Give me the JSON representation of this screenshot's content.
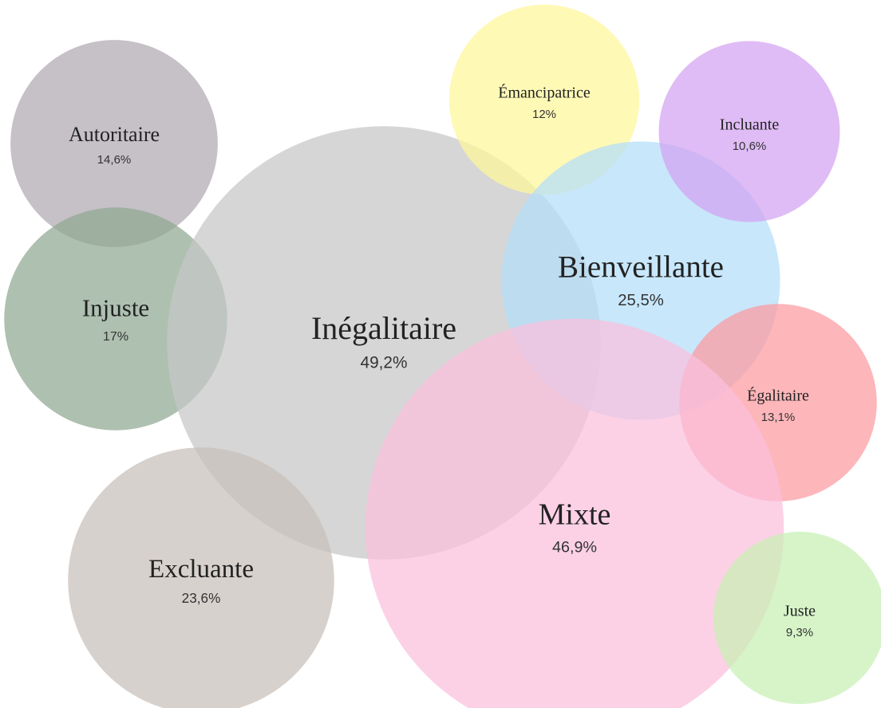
{
  "chart_data": {
    "type": "bubble",
    "categories": [
      "Autoritaire",
      "Injuste",
      "Inégalitaire",
      "Excluante",
      "Émancipatrice",
      "Bienveillante",
      "Incluante",
      "Égalitaire",
      "Mixte",
      "Juste"
    ],
    "values": [
      14.6,
      17,
      49.2,
      23.6,
      12,
      25.5,
      10.6,
      13.1,
      46.9,
      9.3
    ],
    "value_labels": [
      "14,6%",
      "17%",
      "49,2%",
      "23,6%",
      "12%",
      "25,5%",
      "10,6%",
      "13,1%",
      "46,9%",
      "9,3%"
    ],
    "colors": [
      "#b0a8b1",
      "#8fa792",
      "#c6c6c6",
      "#c7bfba",
      "#fff79a",
      "#b3defa",
      "#d3a2f1",
      "#fc9aa0",
      "#fbbfdc",
      "#c8f0b4"
    ]
  }
}
